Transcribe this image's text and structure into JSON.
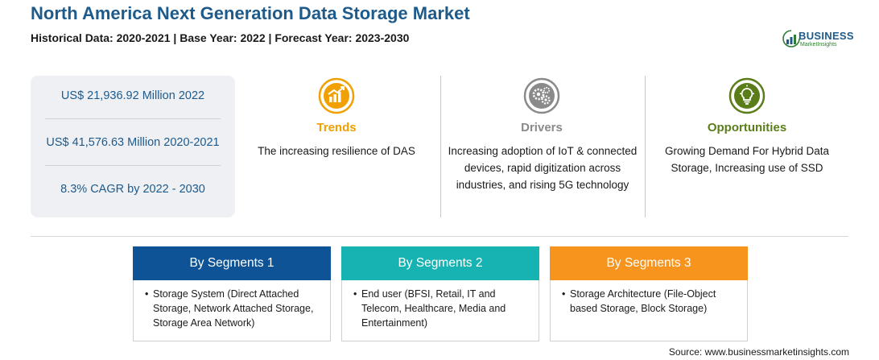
{
  "header": {
    "title": "North America Next Generation Data Storage Market",
    "subtitle": "Historical Data: 2020-2021 | Base Year: 2022 | Forecast Year: 2023-2030"
  },
  "logo": {
    "line1": "BUSINESS",
    "line2": "MarketInsights",
    "icon": "bar-chart-logo-icon"
  },
  "stats": [
    "US$ 21,936.92 Million 2022",
    "US$ 41,576.63 Million 2020-2021",
    "8.3% CAGR by 2022 - 2030"
  ],
  "columns": {
    "trends": {
      "title": "Trends",
      "text": "The increasing resilience of DAS",
      "icon": "trend-chart-icon",
      "color": "#f0a000"
    },
    "drivers": {
      "title": "Drivers",
      "text": "Increasing adoption of IoT & connected devices, rapid digitization across industries, and rising 5G technology",
      "icon": "gears-icon",
      "color": "#8a8a8a"
    },
    "opportunities": {
      "title": "Opportunities",
      "text": "Growing Demand For Hybrid Data Storage, Increasing use of SSD",
      "icon": "lightbulb-icon",
      "color": "#5a7d1a"
    }
  },
  "segments": [
    {
      "label": "By Segments 1",
      "color": "#0d5396",
      "item": "Storage System (Direct Attached Storage, Network Attached Storage, Storage Area Network)"
    },
    {
      "label": "By Segments 2",
      "color": "#17b3b3",
      "item": "End user (BFSI, Retail, IT and Telecom, Healthcare, Media and Entertainment)"
    },
    {
      "label": "By Segments 3",
      "color": "#f7941d",
      "item": "Storage Architecture (File-Object based Storage, Block Storage)"
    }
  ],
  "source": "Source: www.businessmarketinsights.com"
}
